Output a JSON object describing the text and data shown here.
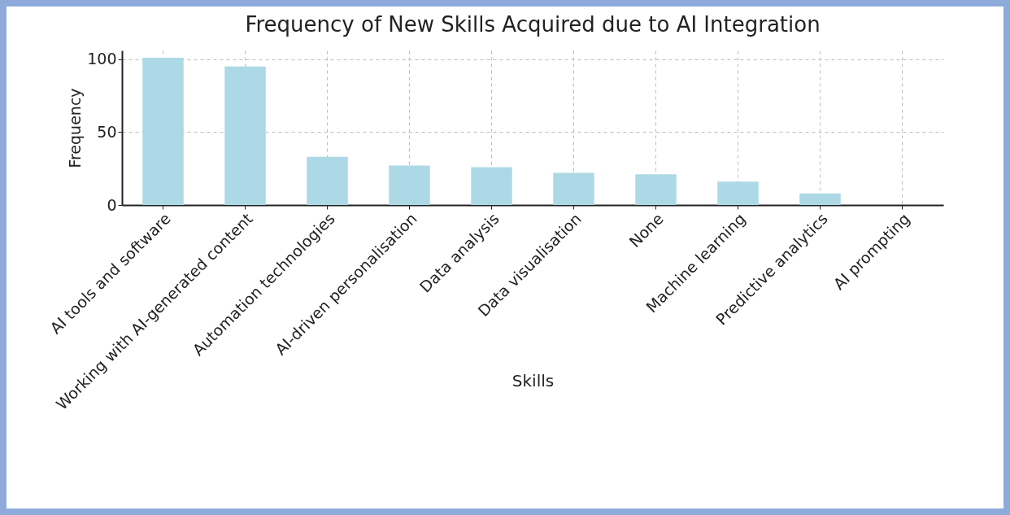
{
  "chart_data": {
    "type": "bar",
    "title": "Frequency of New Skills Acquired due to AI Integration",
    "xlabel": "Skills",
    "ylabel": "Frequency",
    "categories": [
      "AI tools and software",
      "Working with AI-generated content",
      "Automation technologies",
      "AI-driven personalisation",
      "Data analysis",
      "Data visualisation",
      "None",
      "Machine learning",
      "Predictive analytics",
      "AI prompting"
    ],
    "values": [
      101,
      95,
      33,
      27,
      26,
      22,
      21,
      16,
      8,
      0
    ],
    "color": "#add8e6",
    "ylim": [
      0,
      106
    ],
    "yticks": [
      0,
      50,
      100
    ],
    "grid": true
  }
}
